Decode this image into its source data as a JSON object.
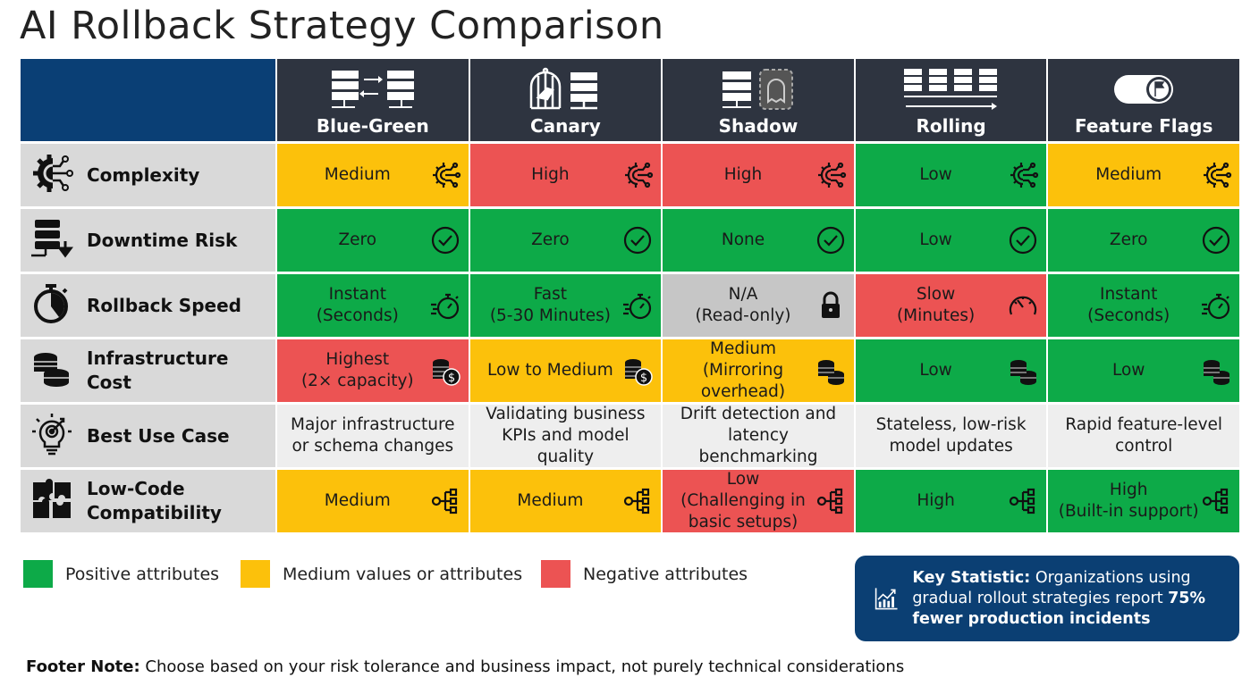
{
  "title": "AI Rollback Strategy Comparison",
  "colors": {
    "positive": "#0DAA48",
    "medium": "#FCC10B",
    "negative": "#EC5353",
    "neutral": "#C6C6C6",
    "header": "#2E3440",
    "brand_blue": "#0A3F75"
  },
  "columns": [
    {
      "label": "Blue-Green",
      "icon": "blue-green-servers-icon"
    },
    {
      "label": "Canary",
      "icon": "canary-cage-icon"
    },
    {
      "label": "Shadow",
      "icon": "shadow-ghost-server-icon"
    },
    {
      "label": "Rolling",
      "icon": "rolling-servers-icon"
    },
    {
      "label": "Feature Flags",
      "icon": "feature-flag-toggle-icon"
    }
  ],
  "rows": [
    {
      "label": "Complexity",
      "icon": "gear-circuit-icon",
      "cells": [
        {
          "text": "Medium",
          "status": "y",
          "icon": "gear"
        },
        {
          "text": "High",
          "status": "r",
          "icon": "gear"
        },
        {
          "text": "High",
          "status": "r",
          "icon": "gear"
        },
        {
          "text": "Low",
          "status": "g",
          "icon": "gear"
        },
        {
          "text": "Medium",
          "status": "y",
          "icon": "gear"
        }
      ]
    },
    {
      "label": "Downtime Risk",
      "icon": "server-download-icon",
      "cells": [
        {
          "text": "Zero",
          "status": "g",
          "icon": "check"
        },
        {
          "text": "Zero",
          "status": "g",
          "icon": "check"
        },
        {
          "text": "None",
          "status": "g",
          "icon": "check"
        },
        {
          "text": "Low",
          "status": "g",
          "icon": "check"
        },
        {
          "text": "Zero",
          "status": "g",
          "icon": "check"
        }
      ]
    },
    {
      "label": "Rollback Speed",
      "icon": "stopwatch-icon",
      "cells": [
        {
          "text": "Instant",
          "sub": "(Seconds)",
          "status": "g",
          "icon": "stopwatch"
        },
        {
          "text": "Fast",
          "sub": "(5-30 Minutes)",
          "status": "g",
          "icon": "stopwatch"
        },
        {
          "text": "N/A",
          "sub": "(Read-only)",
          "status": "n",
          "icon": "lock"
        },
        {
          "text": "Slow",
          "sub": "(Minutes)",
          "status": "r",
          "icon": "speedometer"
        },
        {
          "text": "Instant",
          "sub": "(Seconds)",
          "status": "g",
          "icon": "stopwatch"
        }
      ]
    },
    {
      "label": "Infrastructure Cost",
      "icon": "coins-icon",
      "cells": [
        {
          "text": "Highest",
          "sub": "(2× capacity)",
          "status": "r",
          "icon": "coins-dollar"
        },
        {
          "text": "Low to Medium",
          "status": "y",
          "icon": "coins-dollar"
        },
        {
          "text": "Medium",
          "sub": "(Mirroring overhead)",
          "status": "y",
          "icon": "coins"
        },
        {
          "text": "Low",
          "status": "g",
          "icon": "coins"
        },
        {
          "text": "Low",
          "status": "g",
          "icon": "coins"
        }
      ]
    },
    {
      "label": "Best Use Case",
      "icon": "lightbulb-target-icon",
      "cells": [
        {
          "text": "Major infrastructure",
          "sub": "or schema changes",
          "status": "l"
        },
        {
          "text": "Validating business",
          "sub": "KPIs and model quality",
          "status": "l"
        },
        {
          "text": "Drift detection and",
          "sub": "latency benchmarking",
          "status": "l"
        },
        {
          "text": "Stateless, low-risk",
          "sub": "model updates",
          "status": "l"
        },
        {
          "text": "Rapid feature-level",
          "sub": "control",
          "status": "l"
        }
      ]
    },
    {
      "label": "Low-Code Compatibility",
      "label_line1": "Low-Code",
      "label_line2": "Compatibility",
      "icon": "puzzle-icon",
      "cells": [
        {
          "text": "Medium",
          "status": "y",
          "icon": "network"
        },
        {
          "text": "Medium",
          "status": "y",
          "icon": "network"
        },
        {
          "text": "Low",
          "sub": "(Challenging in basic setups)",
          "status": "r",
          "icon": "network"
        },
        {
          "text": "High",
          "status": "g",
          "icon": "network"
        },
        {
          "text": "High",
          "sub": "(Built-in support)",
          "status": "g",
          "icon": "network"
        }
      ]
    }
  ],
  "legend": [
    {
      "label": "Positive attributes",
      "status": "positive"
    },
    {
      "label": "Medium values or attributes",
      "status": "medium"
    },
    {
      "label": "Negative attributes",
      "status": "negative"
    }
  ],
  "key_statistic": {
    "label": "Key Statistic:",
    "text": " Organizations using gradual rollout strategies report ",
    "highlight": "75% fewer production incidents",
    "icon": "growth-chart-icon"
  },
  "footer": {
    "label": "Footer Note:",
    "text": " Choose based on your risk tolerance and business impact, not purely technical considerations"
  }
}
